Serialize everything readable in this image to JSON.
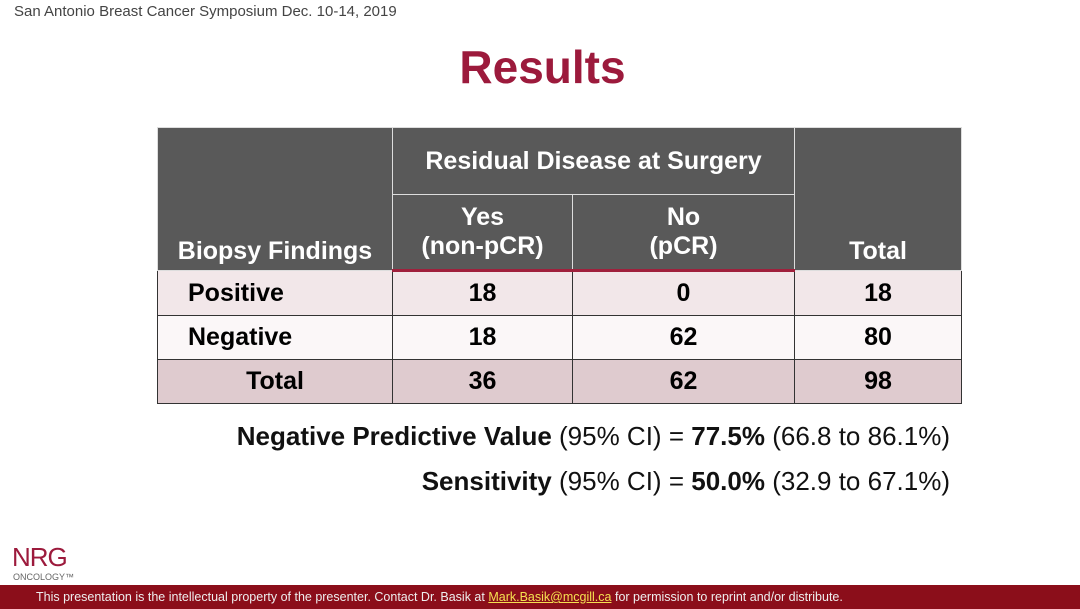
{
  "header": {
    "conference": "San Antonio Breast Cancer Symposium Dec. 10-14, 2019",
    "title": "Results"
  },
  "table": {
    "row_header": "Biopsy Findings",
    "group_header": "Residual Disease at Surgery",
    "columns": [
      [
        "Yes",
        "(non-pCR)"
      ],
      [
        "No",
        "(pCR)"
      ]
    ],
    "total_header": "Total",
    "rows": [
      [
        "Positive",
        18,
        0,
        18
      ],
      [
        "Negative",
        18,
        62,
        80
      ],
      [
        "Total",
        36,
        62,
        98
      ]
    ]
  },
  "metrics": [
    {
      "label": "Negative Predictive Value",
      "ci_label": "(95% CI) =",
      "value": "77.5%",
      "range": "(66.8 to 86.1%)"
    },
    {
      "label": "Sensitivity",
      "ci_label": "(95% CI) =",
      "value": "50.0%",
      "range": "(32.9 to 67.1%)"
    }
  ],
  "logo": {
    "name": "NRG",
    "sub": "ONCOLOGY™"
  },
  "footer": {
    "before": "This presentation is the intellectual property of the presenter. Contact Dr. Basik at",
    "email": "Mark.Basik@mcgill.ca",
    "after": "for permission to reprint and/or distribute."
  }
}
